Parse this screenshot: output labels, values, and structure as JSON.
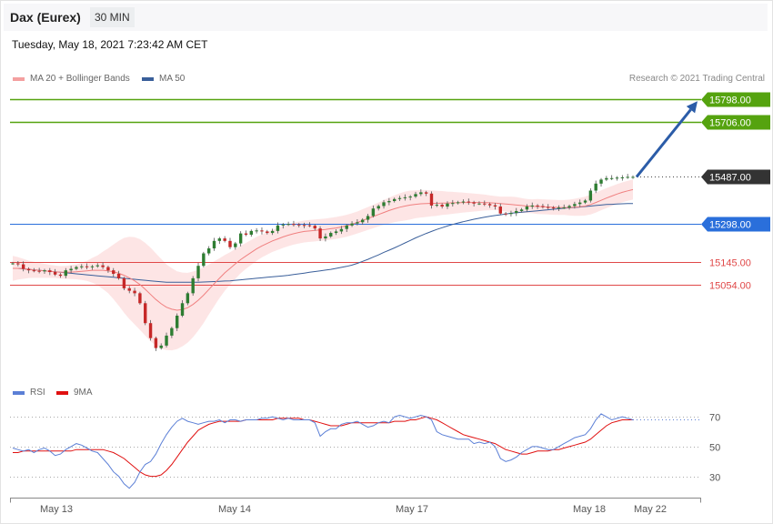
{
  "header": {
    "instrument": "Dax (Eurex)",
    "timeframe": "30 MIN"
  },
  "datetime": "Tuesday, May 18, 2021 7:23:42 AM CET",
  "legend": {
    "price": [
      {
        "label": "MA 20 + Bollinger Bands",
        "color": "#f4a0a0"
      },
      {
        "label": "MA 50",
        "color": "#3a5f9a"
      }
    ],
    "rsi": [
      {
        "label": "RSI",
        "color": "#5b7fd6"
      },
      {
        "label": "9MA",
        "color": "#e01010"
      }
    ]
  },
  "credit": "Research © 2021 Trading Central",
  "colors": {
    "target": "#55a30f",
    "pivot": "#2a6fdb",
    "support": "#e04848",
    "last": "#333333",
    "arrow": "#2b5ca8",
    "bull": "#2e7d32",
    "bear": "#c62828"
  },
  "chart_data": [
    {
      "type": "candlestick",
      "price_ylim": [
        14700,
        15850
      ],
      "x_tick_labels": [
        "May 13",
        "May 14",
        "May 17",
        "May 18",
        "May 22"
      ],
      "levels": [
        {
          "label": "15798.00",
          "value": 15798,
          "kind": "target"
        },
        {
          "label": "15706.00",
          "value": 15706,
          "kind": "target"
        },
        {
          "label": "15487.00",
          "value": 15487,
          "kind": "last"
        },
        {
          "label": "15298.00",
          "value": 15298,
          "kind": "pivot"
        },
        {
          "label": "15145.00",
          "value": 15145,
          "kind": "support"
        },
        {
          "label": "15054.00",
          "value": 15054,
          "kind": "support"
        }
      ],
      "close": [
        15140,
        15136,
        15118,
        15112,
        15110,
        15108,
        15112,
        15105,
        15095,
        15090,
        15112,
        15118,
        15125,
        15128,
        15126,
        15128,
        15132,
        15125,
        15112,
        15098,
        15080,
        15040,
        15030,
        15020,
        14980,
        14900,
        14840,
        14800,
        14810,
        14850,
        14880,
        14930,
        14980,
        15020,
        15080,
        15130,
        15180,
        15200,
        15230,
        15240,
        15230,
        15205,
        15220,
        15260,
        15255,
        15270,
        15272,
        15268,
        15262,
        15270,
        15292,
        15296,
        15298,
        15296,
        15294,
        15293,
        15291,
        15280,
        15240,
        15248,
        15262,
        15268,
        15278,
        15292,
        15300,
        15305,
        15315,
        15330,
        15360,
        15370,
        15385,
        15390,
        15398,
        15402,
        15405,
        15408,
        15418,
        15425,
        15420,
        15372,
        15375,
        15368,
        15380,
        15382,
        15385,
        15388,
        15385,
        15380,
        15380,
        15378,
        15373,
        15368,
        15340,
        15338,
        15342,
        15350,
        15356,
        15368,
        15372,
        15370,
        15366,
        15364,
        15362,
        15364,
        15364,
        15370,
        15378,
        15384,
        15392,
        15432,
        15460,
        15476,
        15482,
        15482,
        15484,
        15485,
        15487,
        15487
      ],
      "ma20": [
        15120,
        15120,
        15118,
        15116,
        15114,
        15112,
        15110,
        15108,
        15106,
        15104,
        15104,
        15105,
        15106,
        15108,
        15110,
        15112,
        15112,
        15112,
        15110,
        15106,
        15100,
        15092,
        15082,
        15070,
        15055,
        15036,
        15015,
        14995,
        14978,
        14964,
        14956,
        14952,
        14955,
        14962,
        14975,
        14992,
        15012,
        15035,
        15058,
        15080,
        15102,
        15120,
        15138,
        15155,
        15170,
        15184,
        15198,
        15210,
        15220,
        15230,
        15238,
        15246,
        15253,
        15259,
        15264,
        15268,
        15270,
        15272,
        15274,
        15276,
        15279,
        15282,
        15286,
        15291,
        15297,
        15304,
        15312,
        15320,
        15328,
        15336,
        15344,
        15352,
        15359,
        15365,
        15370,
        15374,
        15377,
        15379,
        15380,
        15381,
        15381,
        15382,
        15382,
        15383,
        15383,
        15384,
        15384,
        15384,
        15384,
        15384,
        15383,
        15382,
        15380,
        15378,
        15376,
        15374,
        15372,
        15370,
        15369,
        15368,
        15367,
        15366,
        15365,
        15364,
        15364,
        15364,
        15365,
        15367,
        15370,
        15376,
        15384,
        15393,
        15402,
        15410,
        15418,
        15425,
        15431,
        15436
      ],
      "ma50": [
        15120,
        15120,
        15118,
        15116,
        15114,
        15112,
        15110,
        15108,
        15106,
        15104,
        15102,
        15100,
        15098,
        15096,
        15094,
        15092,
        15090,
        15088,
        15086,
        15084,
        15082,
        15080,
        15078,
        15076,
        15074,
        15072,
        15070,
        15068,
        15066,
        15064,
        15064,
        15064,
        15064,
        15064,
        15064,
        15064,
        15065,
        15066,
        15067,
        15068,
        15069,
        15070,
        15072,
        15074,
        15076,
        15078,
        15080,
        15082,
        15084,
        15086,
        15088,
        15090,
        15092,
        15095,
        15098,
        15101,
        15104,
        15107,
        15110,
        15113,
        15116,
        15120,
        15124,
        15128,
        15133,
        15140,
        15148,
        15156,
        15165,
        15174,
        15184,
        15193,
        15202,
        15212,
        15222,
        15232,
        15242,
        15251,
        15260,
        15268,
        15276,
        15283,
        15290,
        15296,
        15302,
        15307,
        15312,
        15317,
        15321,
        15325,
        15329,
        15332,
        15335,
        15338,
        15341,
        15343,
        15345,
        15347,
        15349,
        15351,
        15353,
        15355,
        15357,
        15359,
        15361,
        15363,
        15364,
        15366,
        15368,
        15370,
        15372,
        15374,
        15376,
        15377,
        15378,
        15379,
        15380,
        15380
      ],
      "band_width": [
        50,
        45,
        40,
        35,
        32,
        30,
        28,
        26,
        25,
        25,
        26,
        28,
        30,
        35,
        40,
        50,
        60,
        75,
        90,
        110,
        130,
        150,
        165,
        175,
        182,
        186,
        188,
        185,
        180,
        172,
        165,
        156,
        148,
        140,
        132,
        122,
        112,
        100,
        90,
        80,
        72,
        65,
        60,
        55,
        52,
        50,
        48,
        46,
        45,
        44,
        44,
        44,
        44,
        44,
        44,
        44,
        44,
        44,
        44,
        44,
        44,
        44,
        44,
        44,
        44,
        44,
        45,
        46,
        47,
        48,
        50,
        52,
        54,
        56,
        58,
        58,
        56,
        55,
        54,
        52,
        50,
        48,
        46,
        44,
        42,
        40,
        38,
        36,
        34,
        32,
        30,
        28,
        28,
        30,
        32,
        32,
        30,
        28,
        28,
        30,
        30,
        30,
        30,
        30,
        30,
        32,
        34,
        36,
        38,
        40,
        40,
        40,
        40,
        40,
        40,
        40,
        40,
        40
      ],
      "rsi_ylim": [
        20,
        75
      ],
      "rsi_levels": [
        70,
        50,
        30
      ],
      "rsi": [
        49,
        48,
        47,
        48,
        46,
        48,
        49,
        47,
        44,
        45,
        48,
        50,
        52,
        51,
        49,
        47,
        46,
        42,
        38,
        33,
        30,
        25,
        22,
        26,
        33,
        38,
        40,
        45,
        52,
        58,
        63,
        67,
        69,
        67,
        66,
        65,
        66,
        67,
        67,
        68,
        66,
        68,
        68,
        67,
        68,
        68,
        68,
        69,
        69,
        70,
        69,
        68,
        69,
        68,
        68,
        68,
        68,
        66,
        57,
        60,
        62,
        62,
        65,
        66,
        66,
        67,
        65,
        63,
        64,
        66,
        67,
        66,
        70,
        71,
        70,
        69,
        70,
        71,
        70,
        68,
        60,
        58,
        57,
        56,
        55,
        55,
        55,
        52,
        53,
        52,
        53,
        50,
        42,
        40,
        41,
        43,
        46,
        48,
        50,
        50,
        49,
        48,
        48,
        50,
        52,
        54,
        56,
        57,
        58,
        62,
        68,
        72,
        70,
        68,
        69,
        70,
        69,
        68
      ],
      "rsi_ma": [
        46,
        46,
        47,
        47,
        47,
        47,
        47,
        47,
        47,
        47,
        47,
        47,
        48,
        48,
        48,
        48,
        48,
        48,
        47,
        46,
        44,
        42,
        39,
        36,
        33,
        31,
        30,
        30,
        31,
        34,
        38,
        43,
        48,
        53,
        57,
        61,
        63,
        65,
        66,
        67,
        67,
        67,
        67,
        67,
        68,
        68,
        68,
        68,
        68,
        68,
        69,
        69,
        69,
        69,
        69,
        68,
        68,
        67,
        66,
        65,
        64,
        64,
        64,
        65,
        66,
        66,
        66,
        66,
        66,
        66,
        66,
        66,
        67,
        67,
        67,
        68,
        68,
        69,
        70,
        69,
        68,
        66,
        64,
        62,
        60,
        58,
        57,
        56,
        55,
        54,
        53,
        52,
        50,
        48,
        47,
        46,
        45,
        45,
        46,
        47,
        47,
        47,
        48,
        48,
        49,
        50,
        51,
        52,
        53,
        55,
        58,
        61,
        64,
        66,
        67,
        68,
        68,
        68
      ]
    }
  ]
}
